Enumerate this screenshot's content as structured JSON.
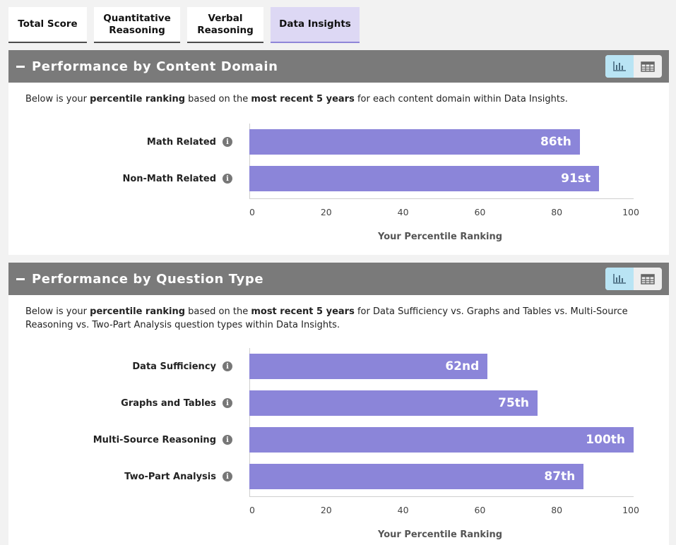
{
  "tabs": [
    {
      "label": "Total Score",
      "active": false
    },
    {
      "label": "Quantitative\nReasoning",
      "active": false
    },
    {
      "label": "Verbal\nReasoning",
      "active": false
    },
    {
      "label": "Data Insights",
      "active": true
    }
  ],
  "sections": [
    {
      "title": "Performance by Content Domain",
      "desc_parts": [
        {
          "text": "Below is your ",
          "bold": false
        },
        {
          "text": "percentile ranking",
          "bold": true
        },
        {
          "text": " based on the ",
          "bold": false
        },
        {
          "text": "most recent 5 years",
          "bold": true
        },
        {
          "text": " for each content domain within Data Insights.",
          "bold": false
        }
      ],
      "chart_data": {
        "type": "bar",
        "orientation": "horizontal",
        "categories": [
          "Math Related",
          "Non-Math Related"
        ],
        "values": [
          86,
          91
        ],
        "data_labels": [
          "86th",
          "91st"
        ],
        "xlabel": "Your Percentile Ranking",
        "xlim": [
          0,
          100
        ],
        "xticks": [
          "0",
          "20",
          "40",
          "60",
          "80",
          "100"
        ],
        "bar_color": "#8b85d9"
      }
    },
    {
      "title": "Performance by Question Type",
      "desc_parts": [
        {
          "text": "Below is your ",
          "bold": false
        },
        {
          "text": "percentile ranking",
          "bold": true
        },
        {
          "text": " based on the ",
          "bold": false
        },
        {
          "text": "most recent 5 years",
          "bold": true
        },
        {
          "text": " for Data Sufficiency vs. Graphs and Tables vs. Multi-Source\nReasoning vs. Two-Part Analysis question types within Data Insights.",
          "bold": false
        }
      ],
      "chart_data": {
        "type": "bar",
        "orientation": "horizontal",
        "categories": [
          "Data Sufficiency",
          "Graphs and Tables",
          "Multi-Source Reasoning",
          "Two-Part Analysis"
        ],
        "values": [
          62,
          75,
          100,
          87
        ],
        "data_labels": [
          "62nd",
          "75th",
          "100th",
          "87th"
        ],
        "xlabel": "Your Percentile Ranking",
        "xlim": [
          0,
          100
        ],
        "xticks": [
          "0",
          "20",
          "40",
          "60",
          "80",
          "100"
        ],
        "bar_color": "#8b85d9"
      }
    }
  ],
  "icons": {
    "collapse": "minus-icon",
    "info": "info-icon",
    "info_glyph": "i",
    "chart_view": "bar-chart-icon",
    "table_view": "table-icon"
  },
  "colors": {
    "header_bg": "#7a7a7a",
    "active_tab_bg": "#ddd8f4",
    "toggle_active_bg": "#b9e4f4"
  }
}
